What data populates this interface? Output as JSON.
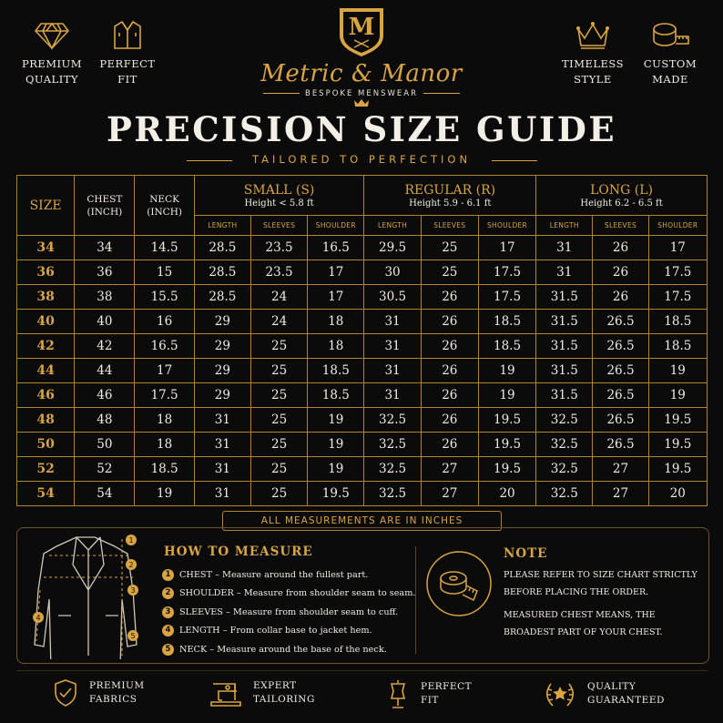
{
  "header": {
    "badges_left": [
      {
        "icon": "diamond-icon",
        "label": "PREMIUM\nQUALITY"
      },
      {
        "icon": "jacket-icon",
        "label": "PERFECT\nFIT"
      }
    ],
    "badges_right": [
      {
        "icon": "crown-icon",
        "label": "TIMELESS\nSTYLE"
      },
      {
        "icon": "tape-measure-icon",
        "label": "CUSTOM\nMADE"
      }
    ],
    "logo_letter": "M",
    "brand": "Metric & Manor",
    "tagline": "BESPOKE MENSWEAR",
    "title": "PRECISION SIZE GUIDE",
    "subtitle": "TAILORED TO PERFECTION"
  },
  "table": {
    "size_header": "SIZE",
    "chest_header": "CHEST (INCH)",
    "neck_header": "NECK (INCH)",
    "groups": [
      {
        "name": "SMALL (S)",
        "height": "Height < 5.8 ft"
      },
      {
        "name": "REGULAR (R)",
        "height": "Height 5.9 - 6.1 ft"
      },
      {
        "name": "LONG (L)",
        "height": "Height 6.2 - 6.5 ft"
      }
    ],
    "subheaders": [
      "LENGTH",
      "SLEEVES",
      "SHOULDER"
    ],
    "rows": [
      [
        "34",
        "34",
        "14.5",
        "28.5",
        "23.5",
        "16.5",
        "29.5",
        "25",
        "17",
        "31",
        "26",
        "17"
      ],
      [
        "36",
        "36",
        "15",
        "28.5",
        "23.5",
        "17",
        "30",
        "25",
        "17.5",
        "31",
        "26",
        "17.5"
      ],
      [
        "38",
        "38",
        "15.5",
        "28.5",
        "24",
        "17",
        "30.5",
        "26",
        "17.5",
        "31.5",
        "26",
        "17.5"
      ],
      [
        "40",
        "40",
        "16",
        "29",
        "24",
        "18",
        "31",
        "26",
        "18.5",
        "31.5",
        "26.5",
        "18.5"
      ],
      [
        "42",
        "42",
        "16.5",
        "29",
        "25",
        "18",
        "31",
        "26",
        "18.5",
        "31.5",
        "26.5",
        "18.5"
      ],
      [
        "44",
        "44",
        "17",
        "29",
        "25",
        "18.5",
        "31",
        "26",
        "19",
        "31.5",
        "26.5",
        "19"
      ],
      [
        "46",
        "46",
        "17.5",
        "29",
        "25",
        "18.5",
        "31",
        "26",
        "19",
        "31.5",
        "26.5",
        "19"
      ],
      [
        "48",
        "48",
        "18",
        "31",
        "25",
        "19",
        "32.5",
        "26",
        "19.5",
        "32.5",
        "26.5",
        "19.5"
      ],
      [
        "50",
        "50",
        "18",
        "31",
        "25",
        "19",
        "32.5",
        "26",
        "19.5",
        "32.5",
        "26.5",
        "19.5"
      ],
      [
        "52",
        "52",
        "18.5",
        "31",
        "25",
        "19",
        "32.5",
        "27",
        "19.5",
        "32.5",
        "27",
        "19.5"
      ],
      [
        "54",
        "54",
        "19",
        "31",
        "25",
        "19.5",
        "32.5",
        "27",
        "20",
        "32.5",
        "27",
        "20"
      ]
    ]
  },
  "measure_note": "ALL MEASUREMENTS ARE IN INCHES",
  "how_to": {
    "title": "HOW TO MEASURE",
    "steps": [
      {
        "num": "1",
        "text": "CHEST – Measure around the fullest part."
      },
      {
        "num": "2",
        "text": "SHOULDER – Measure from shoulder seam to seam."
      },
      {
        "num": "3",
        "text": "SLEEVES – Measure from shoulder seam to cuff."
      },
      {
        "num": "4",
        "text": "LENGTH – From collar base to jacket hem."
      },
      {
        "num": "5",
        "text": "NECK – Measure around the base of the neck."
      }
    ],
    "diagram_markers": [
      "1",
      "2",
      "3",
      "4",
      "5"
    ]
  },
  "note": {
    "title": "NOTE",
    "para1": "PLEASE REFER TO SIZE CHART STRICTLY BEFORE PLACING THE ORDER.",
    "para2": "MEASURED CHEST MEANS, THE BROADEST PART OF YOUR CHEST."
  },
  "footer": [
    {
      "icon": "shield-check-icon",
      "label": "PREMIUM\nFABRICS"
    },
    {
      "icon": "sewing-machine-icon",
      "label": "EXPERT\nTAILORING"
    },
    {
      "icon": "mannequin-icon",
      "label": "PERFECT\nFIT"
    },
    {
      "icon": "laurel-star-icon",
      "label": "QUALITY\nGUARANTEED"
    }
  ],
  "colors": {
    "gold": "#d9a441",
    "background": "#0b0b0b",
    "text": "#f1ece2"
  }
}
